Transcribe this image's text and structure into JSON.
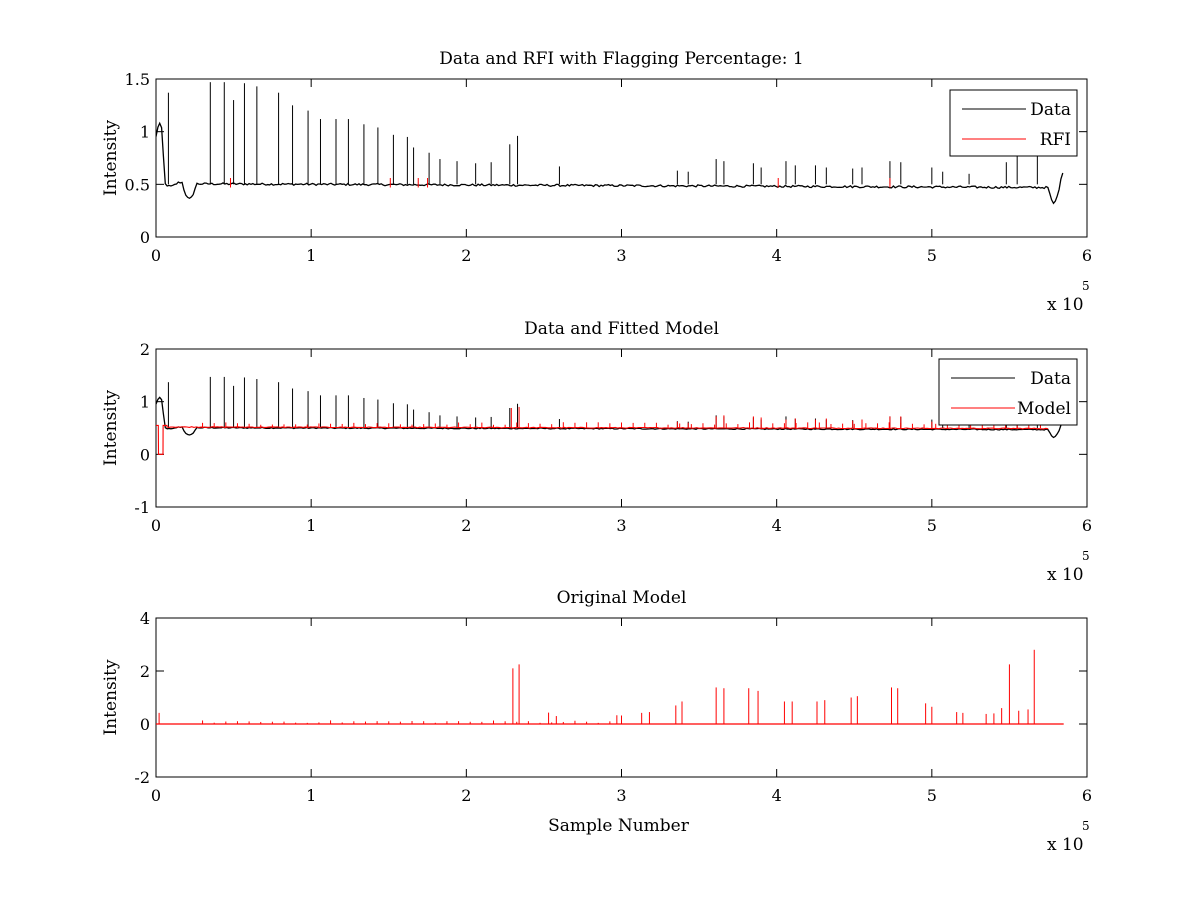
{
  "chart_data": [
    {
      "type": "line",
      "title": "Data and RFI with Flagging Percentage: 1",
      "xlabel": "",
      "ylabel": "Intensity",
      "xlim": [
        0,
        600000
      ],
      "ylim": [
        0,
        1.5
      ],
      "xticks": [
        0,
        1,
        2,
        3,
        4,
        5,
        6
      ],
      "yticks": [
        0,
        0.5,
        1,
        1.5
      ],
      "x_multiplier": "x 10",
      "x_exponent": "5",
      "legend_position": "top-right",
      "baseline": 0.5,
      "series": [
        {
          "name": "Data",
          "color": "#000000",
          "spikes": [
            [
              8000,
              1.37
            ],
            [
              35000,
              1.47
            ],
            [
              44000,
              1.47
            ],
            [
              50000,
              1.3
            ],
            [
              57000,
              1.46
            ],
            [
              65000,
              1.43
            ],
            [
              79000,
              1.37
            ],
            [
              88000,
              1.25
            ],
            [
              98000,
              1.2
            ],
            [
              106000,
              1.12
            ],
            [
              116000,
              1.12
            ],
            [
              124000,
              1.12
            ],
            [
              134000,
              1.07
            ],
            [
              143000,
              1.04
            ],
            [
              153000,
              0.97
            ],
            [
              162000,
              0.95
            ],
            [
              166000,
              0.85
            ],
            [
              176000,
              0.8
            ],
            [
              183000,
              0.74
            ],
            [
              194000,
              0.72
            ],
            [
              206000,
              0.7
            ],
            [
              216000,
              0.71
            ],
            [
              228000,
              0.88
            ],
            [
              233000,
              0.96
            ],
            [
              260000,
              0.67
            ],
            [
              336000,
              0.63
            ],
            [
              343000,
              0.62
            ],
            [
              361000,
              0.74
            ],
            [
              366000,
              0.72
            ],
            [
              385000,
              0.7
            ],
            [
              390000,
              0.66
            ],
            [
              406000,
              0.72
            ],
            [
              412000,
              0.68
            ],
            [
              425000,
              0.68
            ],
            [
              432000,
              0.66
            ],
            [
              449000,
              0.65
            ],
            [
              455000,
              0.66
            ],
            [
              473000,
              0.72
            ],
            [
              480000,
              0.71
            ],
            [
              500000,
              0.66
            ],
            [
              507000,
              0.62
            ],
            [
              524000,
              0.6
            ],
            [
              548000,
              0.71
            ],
            [
              555000,
              0.8
            ],
            [
              568000,
              0.86
            ]
          ]
        },
        {
          "name": "RFI",
          "color": "#ff0000",
          "markers": [
            48000,
            151000,
            169000,
            175000,
            401000,
            473000
          ]
        }
      ]
    },
    {
      "type": "line",
      "title": "Data and Fitted Model",
      "xlabel": "",
      "ylabel": "Intensity",
      "xlim": [
        0,
        600000
      ],
      "ylim": [
        -1,
        2
      ],
      "xticks": [
        0,
        1,
        2,
        3,
        4,
        5,
        6
      ],
      "yticks": [
        -1,
        0,
        1,
        2
      ],
      "x_multiplier": "x 10",
      "x_exponent": "5",
      "legend_position": "top-right",
      "baseline": 0.5,
      "series": [
        {
          "name": "Data",
          "color": "#000000"
        },
        {
          "name": "Model",
          "color": "#ff0000",
          "spikes": [
            [
              229000,
              0.88
            ],
            [
              234000,
              0.9
            ],
            [
              336000,
              0.62
            ],
            [
              343000,
              0.6
            ],
            [
              361000,
              0.72
            ],
            [
              366000,
              0.74
            ],
            [
              385000,
              0.72
            ],
            [
              390000,
              0.7
            ],
            [
              406000,
              0.66
            ],
            [
              412000,
              0.68
            ],
            [
              425000,
              0.66
            ],
            [
              432000,
              0.68
            ],
            [
              449000,
              0.64
            ],
            [
              455000,
              0.66
            ],
            [
              473000,
              0.72
            ],
            [
              480000,
              0.72
            ],
            [
              500000,
              0.62
            ]
          ]
        }
      ]
    },
    {
      "type": "line",
      "title": "Original Model",
      "xlabel": "Sample Number",
      "ylabel": "Intensity",
      "xlim": [
        0,
        600000
      ],
      "ylim": [
        -2,
        4
      ],
      "xticks": [
        0,
        1,
        2,
        3,
        4,
        5,
        6
      ],
      "yticks": [
        -2,
        0,
        2,
        4
      ],
      "x_multiplier": "x 10",
      "x_exponent": "5",
      "series": [
        {
          "color": "#ff0000",
          "spikes": [
            [
              2000,
              0.42
            ],
            [
              230000,
              2.1
            ],
            [
              234000,
              2.25
            ],
            [
              253000,
              0.43
            ],
            [
              258000,
              0.3
            ],
            [
              297000,
              0.33
            ],
            [
              300000,
              0.32
            ],
            [
              313000,
              0.42
            ],
            [
              318000,
              0.45
            ],
            [
              335000,
              0.7
            ],
            [
              339000,
              0.85
            ],
            [
              361000,
              1.38
            ],
            [
              366000,
              1.35
            ],
            [
              382000,
              1.35
            ],
            [
              388000,
              1.25
            ],
            [
              405000,
              0.85
            ],
            [
              410000,
              0.85
            ],
            [
              426000,
              0.85
            ],
            [
              431000,
              0.9
            ],
            [
              448000,
              1.0
            ],
            [
              452000,
              1.05
            ],
            [
              474000,
              1.38
            ],
            [
              478000,
              1.35
            ],
            [
              496000,
              0.78
            ],
            [
              500000,
              0.65
            ],
            [
              516000,
              0.45
            ],
            [
              520000,
              0.42
            ],
            [
              535000,
              0.38
            ],
            [
              540000,
              0.4
            ],
            [
              545000,
              0.6
            ],
            [
              550000,
              2.25
            ],
            [
              556000,
              0.5
            ],
            [
              562000,
              0.55
            ],
            [
              566000,
              2.8
            ]
          ]
        }
      ]
    }
  ]
}
